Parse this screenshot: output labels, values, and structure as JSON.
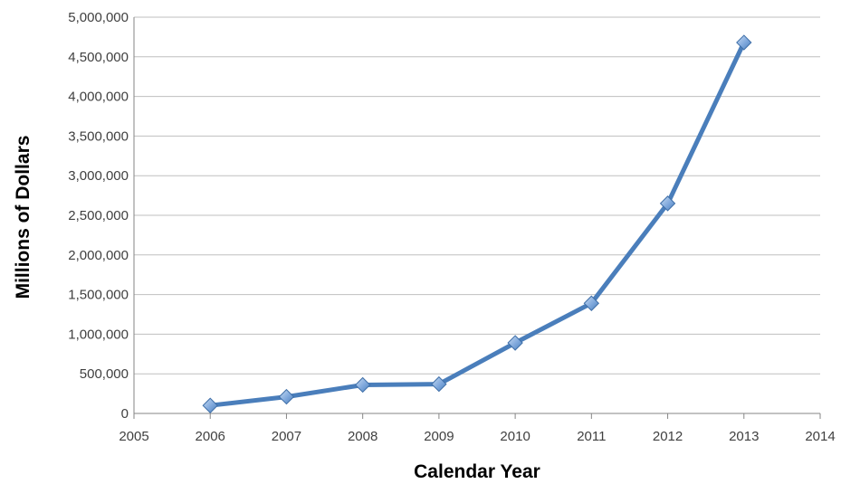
{
  "chart_data": {
    "type": "scatter",
    "title": "",
    "xlabel": "Calendar Year",
    "ylabel": "Millions of Dollars",
    "xlim": [
      2005,
      2014
    ],
    "ylim": [
      0,
      5000000
    ],
    "x_ticks": [
      2005,
      2006,
      2007,
      2008,
      2009,
      2010,
      2011,
      2012,
      2013,
      2014
    ],
    "x_tick_labels": [
      "2005",
      "2006",
      "2007",
      "2008",
      "2009",
      "2010",
      "2011",
      "2012",
      "2013",
      "2014"
    ],
    "y_ticks": [
      0,
      500000,
      1000000,
      1500000,
      2000000,
      2500000,
      3000000,
      3500000,
      4000000,
      4500000,
      5000000
    ],
    "y_tick_labels": [
      "0",
      "500,000",
      "1,000,000",
      "1,500,000",
      "2,000,000",
      "2,500,000",
      "3,000,000",
      "3,500,000",
      "4,000,000",
      "4,500,000",
      "5,000,000"
    ],
    "grid": "horizontal",
    "legend": "none",
    "marker": "diamond",
    "line_style": "straight lines with markers",
    "series": [
      {
        "x": [
          2006,
          2007,
          2008,
          2009,
          2010,
          2011,
          2012,
          2013
        ],
        "y": [
          100000,
          210000,
          360000,
          370000,
          890000,
          1390000,
          2650000,
          4680000
        ],
        "color": "#4a7ebb"
      }
    ]
  }
}
